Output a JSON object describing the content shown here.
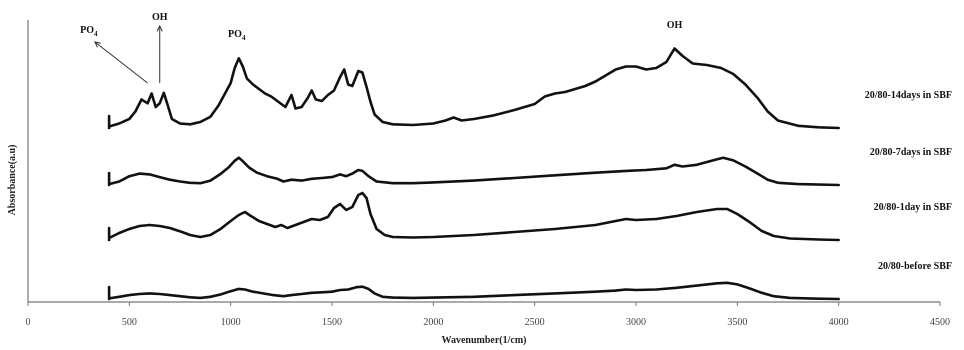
{
  "chart_data": {
    "type": "line",
    "xlabel": "Wavenumber(1/cm)",
    "ylabel": "Absorbance(a.u)",
    "xlim": [
      0,
      4500
    ],
    "x_ticks": [
      "0",
      "500",
      "1000",
      "1500",
      "2000",
      "2500",
      "3000",
      "3500",
      "4000",
      "4500"
    ],
    "grid": false,
    "series": [
      {
        "name": "20/80-14days in SBF",
        "offset": 3,
        "points": [
          [
            400,
            0.02
          ],
          [
            450,
            0.06
          ],
          [
            500,
            0.12
          ],
          [
            530,
            0.22
          ],
          [
            560,
            0.38
          ],
          [
            590,
            0.33
          ],
          [
            610,
            0.46
          ],
          [
            630,
            0.28
          ],
          [
            650,
            0.33
          ],
          [
            670,
            0.47
          ],
          [
            690,
            0.3
          ],
          [
            710,
            0.12
          ],
          [
            750,
            0.06
          ],
          [
            800,
            0.05
          ],
          [
            850,
            0.08
          ],
          [
            900,
            0.15
          ],
          [
            940,
            0.3
          ],
          [
            970,
            0.45
          ],
          [
            1000,
            0.6
          ],
          [
            1020,
            0.8
          ],
          [
            1040,
            0.93
          ],
          [
            1060,
            0.82
          ],
          [
            1080,
            0.66
          ],
          [
            1110,
            0.58
          ],
          [
            1140,
            0.52
          ],
          [
            1170,
            0.46
          ],
          [
            1200,
            0.42
          ],
          [
            1240,
            0.34
          ],
          [
            1270,
            0.28
          ],
          [
            1300,
            0.44
          ],
          [
            1320,
            0.26
          ],
          [
            1350,
            0.28
          ],
          [
            1380,
            0.4
          ],
          [
            1400,
            0.5
          ],
          [
            1420,
            0.38
          ],
          [
            1450,
            0.36
          ],
          [
            1480,
            0.44
          ],
          [
            1510,
            0.5
          ],
          [
            1540,
            0.68
          ],
          [
            1560,
            0.78
          ],
          [
            1580,
            0.58
          ],
          [
            1600,
            0.56
          ],
          [
            1630,
            0.76
          ],
          [
            1650,
            0.74
          ],
          [
            1670,
            0.55
          ],
          [
            1690,
            0.35
          ],
          [
            1710,
            0.18
          ],
          [
            1750,
            0.08
          ],
          [
            1800,
            0.05
          ],
          [
            1900,
            0.04
          ],
          [
            2000,
            0.06
          ],
          [
            2060,
            0.1
          ],
          [
            2100,
            0.14
          ],
          [
            2140,
            0.1
          ],
          [
            2200,
            0.12
          ],
          [
            2300,
            0.17
          ],
          [
            2400,
            0.24
          ],
          [
            2500,
            0.32
          ],
          [
            2550,
            0.42
          ],
          [
            2600,
            0.46
          ],
          [
            2650,
            0.48
          ],
          [
            2700,
            0.52
          ],
          [
            2750,
            0.56
          ],
          [
            2800,
            0.62
          ],
          [
            2850,
            0.7
          ],
          [
            2900,
            0.78
          ],
          [
            2950,
            0.82
          ],
          [
            3000,
            0.82
          ],
          [
            3050,
            0.78
          ],
          [
            3100,
            0.8
          ],
          [
            3150,
            0.88
          ],
          [
            3190,
            1.06
          ],
          [
            3230,
            0.96
          ],
          [
            3280,
            0.86
          ],
          [
            3350,
            0.84
          ],
          [
            3420,
            0.8
          ],
          [
            3480,
            0.72
          ],
          [
            3540,
            0.58
          ],
          [
            3600,
            0.4
          ],
          [
            3650,
            0.22
          ],
          [
            3700,
            0.1
          ],
          [
            3800,
            0.03
          ],
          [
            3900,
            0.01
          ],
          [
            4000,
            0.0
          ]
        ]
      },
      {
        "name": "20/80-7days in SBF",
        "offset": 2,
        "points": [
          [
            400,
            0.02
          ],
          [
            450,
            0.08
          ],
          [
            500,
            0.2
          ],
          [
            550,
            0.26
          ],
          [
            600,
            0.24
          ],
          [
            650,
            0.18
          ],
          [
            700,
            0.12
          ],
          [
            750,
            0.08
          ],
          [
            800,
            0.05
          ],
          [
            850,
            0.04
          ],
          [
            900,
            0.1
          ],
          [
            950,
            0.25
          ],
          [
            990,
            0.4
          ],
          [
            1020,
            0.55
          ],
          [
            1040,
            0.62
          ],
          [
            1060,
            0.54
          ],
          [
            1090,
            0.4
          ],
          [
            1130,
            0.28
          ],
          [
            1180,
            0.2
          ],
          [
            1230,
            0.14
          ],
          [
            1260,
            0.08
          ],
          [
            1300,
            0.12
          ],
          [
            1350,
            0.1
          ],
          [
            1400,
            0.14
          ],
          [
            1450,
            0.16
          ],
          [
            1500,
            0.18
          ],
          [
            1540,
            0.24
          ],
          [
            1570,
            0.2
          ],
          [
            1600,
            0.26
          ],
          [
            1630,
            0.34
          ],
          [
            1650,
            0.32
          ],
          [
            1680,
            0.2
          ],
          [
            1720,
            0.08
          ],
          [
            1800,
            0.04
          ],
          [
            1900,
            0.04
          ],
          [
            2000,
            0.06
          ],
          [
            2200,
            0.1
          ],
          [
            2400,
            0.16
          ],
          [
            2600,
            0.22
          ],
          [
            2800,
            0.28
          ],
          [
            2950,
            0.32
          ],
          [
            3050,
            0.34
          ],
          [
            3150,
            0.38
          ],
          [
            3190,
            0.46
          ],
          [
            3230,
            0.42
          ],
          [
            3300,
            0.46
          ],
          [
            3380,
            0.56
          ],
          [
            3430,
            0.62
          ],
          [
            3480,
            0.56
          ],
          [
            3540,
            0.42
          ],
          [
            3600,
            0.26
          ],
          [
            3650,
            0.12
          ],
          [
            3700,
            0.05
          ],
          [
            3800,
            0.02
          ],
          [
            4000,
            0.0
          ]
        ]
      },
      {
        "name": "20/80-1day in SBF",
        "offset": 1,
        "points": [
          [
            400,
            0.04
          ],
          [
            450,
            0.14
          ],
          [
            500,
            0.22
          ],
          [
            550,
            0.28
          ],
          [
            600,
            0.3
          ],
          [
            650,
            0.28
          ],
          [
            700,
            0.24
          ],
          [
            760,
            0.16
          ],
          [
            800,
            0.1
          ],
          [
            850,
            0.06
          ],
          [
            900,
            0.1
          ],
          [
            950,
            0.22
          ],
          [
            1000,
            0.38
          ],
          [
            1040,
            0.5
          ],
          [
            1070,
            0.56
          ],
          [
            1100,
            0.48
          ],
          [
            1140,
            0.38
          ],
          [
            1180,
            0.32
          ],
          [
            1220,
            0.26
          ],
          [
            1250,
            0.3
          ],
          [
            1280,
            0.24
          ],
          [
            1320,
            0.3
          ],
          [
            1360,
            0.36
          ],
          [
            1400,
            0.42
          ],
          [
            1440,
            0.4
          ],
          [
            1480,
            0.46
          ],
          [
            1510,
            0.64
          ],
          [
            1540,
            0.72
          ],
          [
            1570,
            0.6
          ],
          [
            1600,
            0.66
          ],
          [
            1630,
            0.9
          ],
          [
            1650,
            0.94
          ],
          [
            1670,
            0.84
          ],
          [
            1690,
            0.52
          ],
          [
            1720,
            0.22
          ],
          [
            1760,
            0.1
          ],
          [
            1800,
            0.06
          ],
          [
            1900,
            0.05
          ],
          [
            2000,
            0.06
          ],
          [
            2200,
            0.1
          ],
          [
            2400,
            0.16
          ],
          [
            2600,
            0.22
          ],
          [
            2800,
            0.3
          ],
          [
            2900,
            0.38
          ],
          [
            2950,
            0.42
          ],
          [
            3000,
            0.4
          ],
          [
            3100,
            0.42
          ],
          [
            3200,
            0.48
          ],
          [
            3300,
            0.56
          ],
          [
            3400,
            0.62
          ],
          [
            3450,
            0.62
          ],
          [
            3500,
            0.52
          ],
          [
            3560,
            0.36
          ],
          [
            3620,
            0.18
          ],
          [
            3680,
            0.08
          ],
          [
            3760,
            0.03
          ],
          [
            3900,
            0.01
          ],
          [
            4000,
            0.0
          ]
        ]
      },
      {
        "name": "20/80-before SBF",
        "offset": 0,
        "points": [
          [
            400,
            0.02
          ],
          [
            450,
            0.08
          ],
          [
            500,
            0.14
          ],
          [
            550,
            0.18
          ],
          [
            600,
            0.2
          ],
          [
            650,
            0.18
          ],
          [
            700,
            0.14
          ],
          [
            750,
            0.1
          ],
          [
            800,
            0.06
          ],
          [
            850,
            0.04
          ],
          [
            900,
            0.08
          ],
          [
            950,
            0.16
          ],
          [
            1000,
            0.28
          ],
          [
            1040,
            0.36
          ],
          [
            1070,
            0.34
          ],
          [
            1110,
            0.26
          ],
          [
            1160,
            0.2
          ],
          [
            1210,
            0.14
          ],
          [
            1260,
            0.1
          ],
          [
            1300,
            0.14
          ],
          [
            1350,
            0.18
          ],
          [
            1400,
            0.22
          ],
          [
            1450,
            0.24
          ],
          [
            1500,
            0.26
          ],
          [
            1540,
            0.32
          ],
          [
            1580,
            0.34
          ],
          [
            1620,
            0.42
          ],
          [
            1650,
            0.44
          ],
          [
            1680,
            0.36
          ],
          [
            1710,
            0.2
          ],
          [
            1750,
            0.08
          ],
          [
            1800,
            0.05
          ],
          [
            1900,
            0.04
          ],
          [
            2000,
            0.05
          ],
          [
            2200,
            0.08
          ],
          [
            2400,
            0.14
          ],
          [
            2600,
            0.2
          ],
          [
            2800,
            0.26
          ],
          [
            2900,
            0.3
          ],
          [
            2950,
            0.34
          ],
          [
            3000,
            0.32
          ],
          [
            3100,
            0.34
          ],
          [
            3200,
            0.4
          ],
          [
            3300,
            0.48
          ],
          [
            3400,
            0.56
          ],
          [
            3450,
            0.58
          ],
          [
            3500,
            0.52
          ],
          [
            3560,
            0.38
          ],
          [
            3620,
            0.22
          ],
          [
            3680,
            0.1
          ],
          [
            3760,
            0.04
          ],
          [
            3900,
            0.01
          ],
          [
            4000,
            0.0
          ]
        ]
      }
    ],
    "annotations": [
      {
        "text": "PO",
        "sub": "4",
        "x": 300
      },
      {
        "text": "OH",
        "x": 650
      },
      {
        "text": "PO",
        "sub": "4",
        "x": 1030
      },
      {
        "text": "OH",
        "x": 3190
      }
    ]
  }
}
